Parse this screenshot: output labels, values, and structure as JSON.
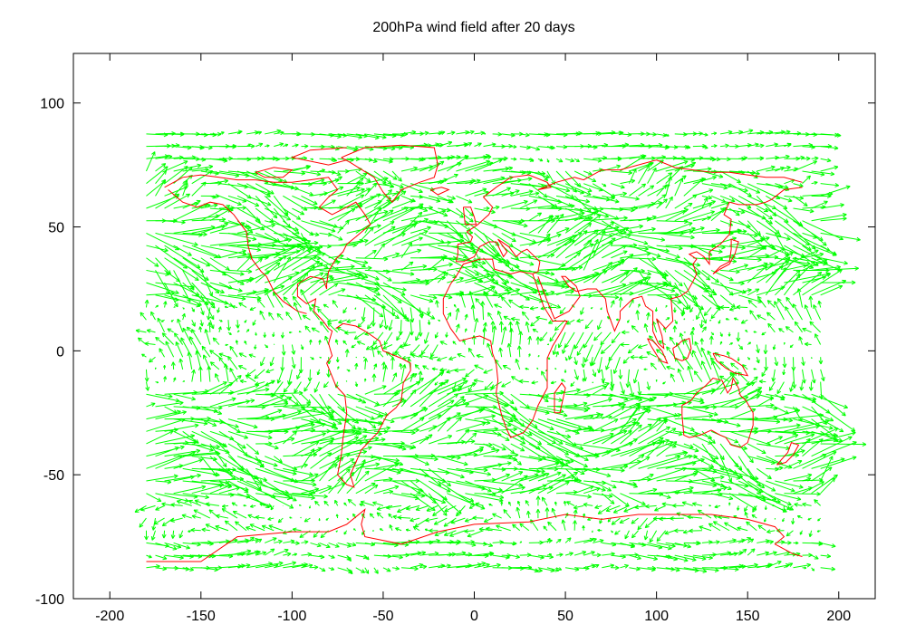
{
  "chart_data": {
    "type": "vector-field",
    "title": "200hPa wind field after 20 days",
    "xlabel": "",
    "ylabel": "",
    "xlim": [
      -220,
      220
    ],
    "ylim": [
      -100,
      120
    ],
    "x_ticks": [
      -200,
      -150,
      -100,
      -50,
      0,
      50,
      100,
      150,
      200
    ],
    "y_ticks": [
      -100,
      -50,
      0,
      50,
      100
    ],
    "x_tick_labels": [
      "-200",
      "-150",
      "-100",
      "-50",
      "0",
      "50",
      "100",
      "150",
      "200"
    ],
    "y_tick_labels": [
      "-100",
      "-50",
      "0",
      "50",
      "100"
    ],
    "grid": false,
    "legend": "none",
    "field_extent": {
      "lon": [
        -180,
        190
      ],
      "lat": [
        -90,
        90
      ]
    },
    "grid_spacing": {
      "lon": 5,
      "lat": 5
    },
    "vector_color": "#00ff00",
    "coastline_color": "#ff0000",
    "wind_bands": [
      {
        "lat_range": [
          75,
          90
        ],
        "u_mean": 16,
        "v_amp": 2
      },
      {
        "lat_range": [
          55,
          75
        ],
        "u_mean": 22,
        "v_amp": 10
      },
      {
        "lat_range": [
          20,
          55
        ],
        "u_mean": 30,
        "v_amp": 14
      },
      {
        "lat_range": [
          -15,
          20
        ],
        "u_mean": -4,
        "v_amp": 10
      },
      {
        "lat_range": [
          -60,
          -15
        ],
        "u_mean": 30,
        "v_amp": 12
      },
      {
        "lat_range": [
          -75,
          -60
        ],
        "u_mean": -8,
        "v_amp": 6
      },
      {
        "lat_range": [
          -90,
          -75
        ],
        "u_mean": 16,
        "v_amp": 3
      }
    ],
    "coastlines": [
      [
        [
          -170,
          66
        ],
        [
          -160,
          70
        ],
        [
          -150,
          71
        ],
        [
          -140,
          70
        ],
        [
          -130,
          69
        ],
        [
          -120,
          69
        ],
        [
          -110,
          68
        ],
        [
          -100,
          68
        ],
        [
          -90,
          69
        ],
        [
          -80,
          70
        ],
        [
          -75,
          65
        ],
        [
          -80,
          62
        ],
        [
          -85,
          58
        ],
        [
          -78,
          55
        ],
        [
          -70,
          58
        ],
        [
          -65,
          60
        ],
        [
          -60,
          55
        ],
        [
          -57,
          51
        ],
        [
          -65,
          46
        ],
        [
          -70,
          43
        ],
        [
          -72,
          40
        ],
        [
          -76,
          37
        ],
        [
          -80,
          32
        ],
        [
          -81,
          27
        ],
        [
          -81,
          25
        ],
        [
          -83,
          29
        ],
        [
          -90,
          30
        ],
        [
          -97,
          27
        ],
        [
          -97,
          22
        ],
        [
          -92,
          19
        ],
        [
          -87,
          21
        ],
        [
          -88,
          16
        ],
        [
          -83,
          12
        ],
        [
          -80,
          9
        ],
        [
          -78,
          8
        ],
        [
          -80,
          3
        ],
        [
          -78,
          -2
        ],
        [
          -81,
          -5
        ],
        [
          -76,
          -14
        ],
        [
          -71,
          -18
        ],
        [
          -70,
          -25
        ],
        [
          -72,
          -35
        ],
        [
          -73,
          -42
        ],
        [
          -75,
          -50
        ],
        [
          -70,
          -54
        ],
        [
          -66,
          -55
        ],
        [
          -68,
          -50
        ],
        [
          -65,
          -45
        ],
        [
          -62,
          -40
        ],
        [
          -57,
          -36
        ],
        [
          -53,
          -33
        ],
        [
          -48,
          -26
        ],
        [
          -43,
          -23
        ],
        [
          -40,
          -20
        ],
        [
          -39,
          -13
        ],
        [
          -35,
          -8
        ],
        [
          -35,
          -5
        ],
        [
          -40,
          -3
        ],
        [
          -50,
          0
        ],
        [
          -52,
          4
        ],
        [
          -60,
          8
        ],
        [
          -65,
          10
        ],
        [
          -72,
          11
        ],
        [
          -76,
          9
        ]
      ],
      [
        [
          -125,
          48
        ],
        [
          -124,
          42
        ],
        [
          -122,
          37
        ],
        [
          -117,
          32
        ],
        [
          -114,
          30
        ],
        [
          -110,
          24
        ],
        [
          -105,
          20
        ],
        [
          -97,
          16
        ],
        [
          -92,
          15
        ]
      ],
      [
        [
          -168,
          65
        ],
        [
          -160,
          60
        ],
        [
          -152,
          58
        ],
        [
          -145,
          60
        ],
        [
          -138,
          59
        ],
        [
          -132,
          55
        ],
        [
          -128,
          51
        ],
        [
          -125,
          48
        ]
      ],
      [
        [
          -73,
          78
        ],
        [
          -60,
          82
        ],
        [
          -40,
          83
        ],
        [
          -22,
          82
        ],
        [
          -20,
          75
        ],
        [
          -22,
          70
        ],
        [
          -30,
          68
        ],
        [
          -40,
          65
        ],
        [
          -45,
          60
        ],
        [
          -50,
          64
        ],
        [
          -55,
          70
        ],
        [
          -68,
          76
        ],
        [
          -73,
          78
        ]
      ],
      [
        [
          -24,
          65
        ],
        [
          -18,
          66
        ],
        [
          -14,
          65
        ],
        [
          -20,
          63
        ],
        [
          -24,
          65
        ]
      ],
      [
        [
          -10,
          36
        ],
        [
          -9,
          39
        ],
        [
          -9,
          43
        ],
        [
          -2,
          44
        ],
        [
          -1,
          46
        ],
        [
          -4,
          48
        ],
        [
          2,
          51
        ],
        [
          5,
          53
        ],
        [
          8,
          55
        ],
        [
          10,
          58
        ],
        [
          5,
          62
        ],
        [
          12,
          66
        ],
        [
          20,
          70
        ],
        [
          30,
          71
        ],
        [
          40,
          68
        ],
        [
          42,
          66
        ],
        [
          35,
          65
        ],
        [
          45,
          68
        ],
        [
          55,
          70
        ],
        [
          60,
          69
        ],
        [
          70,
          73
        ],
        [
          80,
          73
        ],
        [
          100,
          77
        ],
        [
          110,
          74
        ],
        [
          130,
          72
        ],
        [
          140,
          72
        ],
        [
          150,
          71
        ],
        [
          160,
          70
        ],
        [
          170,
          70
        ],
        [
          180,
          68
        ]
      ],
      [
        [
          -6,
          58
        ],
        [
          -5,
          51
        ],
        [
          1,
          51
        ],
        [
          0,
          54
        ],
        [
          -2,
          58
        ],
        [
          -6,
          58
        ]
      ],
      [
        [
          -10,
          36
        ],
        [
          -6,
          36
        ],
        [
          0,
          38
        ],
        [
          3,
          42
        ],
        [
          8,
          44
        ],
        [
          12,
          44
        ],
        [
          16,
          38
        ],
        [
          18,
          40
        ],
        [
          13,
          45
        ],
        [
          19,
          42
        ],
        [
          23,
          38
        ],
        [
          26,
          40
        ],
        [
          29,
          41
        ],
        [
          36,
          36
        ],
        [
          35,
          32
        ],
        [
          32,
          31
        ],
        [
          25,
          32
        ],
        [
          20,
          31
        ],
        [
          11,
          33
        ],
        [
          10,
          37
        ],
        [
          3,
          37
        ],
        [
          -6,
          35
        ],
        [
          -10,
          30
        ],
        [
          -13,
          27
        ],
        [
          -17,
          21
        ],
        [
          -17,
          15
        ],
        [
          -13,
          9
        ],
        [
          -8,
          4
        ],
        [
          -3,
          5
        ],
        [
          3,
          6
        ],
        [
          9,
          4
        ],
        [
          10,
          -1
        ],
        [
          12,
          -5
        ],
        [
          13,
          -12
        ],
        [
          12,
          -17
        ],
        [
          15,
          -26
        ],
        [
          18,
          -32
        ],
        [
          20,
          -35
        ],
        [
          27,
          -33
        ],
        [
          32,
          -28
        ],
        [
          35,
          -22
        ],
        [
          40,
          -15
        ],
        [
          40,
          -10
        ],
        [
          40,
          -3
        ],
        [
          43,
          2
        ],
        [
          48,
          8
        ],
        [
          51,
          12
        ],
        [
          43,
          12
        ],
        [
          38,
          18
        ],
        [
          34,
          27
        ],
        [
          32,
          31
        ]
      ],
      [
        [
          44,
          -25
        ],
        [
          47,
          -25
        ],
        [
          50,
          -15
        ],
        [
          48,
          -13
        ],
        [
          44,
          -17
        ],
        [
          44,
          -25
        ]
      ],
      [
        [
          35,
          30
        ],
        [
          40,
          20
        ],
        [
          44,
          13
        ],
        [
          52,
          16
        ],
        [
          58,
          22
        ],
        [
          56,
          26
        ],
        [
          50,
          30
        ],
        [
          48,
          30
        ],
        [
          52,
          26
        ],
        [
          56,
          24
        ],
        [
          62,
          25
        ],
        [
          67,
          25
        ],
        [
          72,
          21
        ],
        [
          73,
          16
        ],
        [
          77,
          8
        ],
        [
          80,
          13
        ],
        [
          80,
          16
        ],
        [
          87,
          21
        ],
        [
          92,
          22
        ],
        [
          94,
          18
        ],
        [
          98,
          16
        ],
        [
          98,
          8
        ],
        [
          101,
          3
        ],
        [
          104,
          1
        ],
        [
          103,
          6
        ],
        [
          100,
          13
        ],
        [
          105,
          9
        ],
        [
          109,
          12
        ],
        [
          108,
          21
        ],
        [
          113,
          22
        ],
        [
          117,
          24
        ],
        [
          120,
          28
        ],
        [
          122,
          31
        ],
        [
          120,
          35
        ],
        [
          122,
          37
        ],
        [
          118,
          39
        ],
        [
          122,
          40
        ],
        [
          126,
          38
        ],
        [
          129,
          35
        ],
        [
          129,
          40
        ],
        [
          135,
          43
        ],
        [
          140,
          47
        ],
        [
          141,
          53
        ],
        [
          137,
          55
        ],
        [
          140,
          60
        ],
        [
          145,
          59
        ],
        [
          155,
          59
        ],
        [
          160,
          60
        ],
        [
          163,
          61
        ],
        [
          170,
          65
        ],
        [
          180,
          66
        ]
      ],
      [
        [
          131,
          31
        ],
        [
          135,
          34
        ],
        [
          140,
          36
        ],
        [
          141,
          41
        ],
        [
          141,
          45
        ],
        [
          145,
          44
        ],
        [
          143,
          39
        ],
        [
          140,
          35
        ],
        [
          135,
          33
        ],
        [
          131,
          31
        ]
      ],
      [
        [
          114,
          -22
        ],
        [
          114,
          -26
        ],
        [
          115,
          -34
        ],
        [
          118,
          -35
        ],
        [
          124,
          -34
        ],
        [
          130,
          -32
        ],
        [
          135,
          -34
        ],
        [
          138,
          -35
        ],
        [
          141,
          -38
        ],
        [
          146,
          -39
        ],
        [
          150,
          -37
        ],
        [
          153,
          -30
        ],
        [
          153,
          -25
        ],
        [
          149,
          -20
        ],
        [
          146,
          -18
        ],
        [
          145,
          -15
        ],
        [
          142,
          -11
        ],
        [
          141,
          -15
        ],
        [
          139,
          -17
        ],
        [
          136,
          -12
        ],
        [
          131,
          -11
        ],
        [
          127,
          -14
        ],
        [
          122,
          -17
        ],
        [
          119,
          -20
        ],
        [
          114,
          -22
        ]
      ],
      [
        [
          166,
          -46
        ],
        [
          172,
          -41
        ],
        [
          174,
          -37
        ],
        [
          178,
          -38
        ],
        [
          175,
          -42
        ],
        [
          171,
          -45
        ],
        [
          166,
          -46
        ]
      ],
      [
        [
          95,
          5
        ],
        [
          98,
          4
        ],
        [
          103,
          0
        ],
        [
          106,
          -5
        ],
        [
          102,
          -4
        ],
        [
          97,
          2
        ],
        [
          95,
          5
        ]
      ],
      [
        [
          131,
          -1
        ],
        [
          137,
          -2
        ],
        [
          141,
          -3
        ],
        [
          147,
          -6
        ],
        [
          150,
          -10
        ],
        [
          143,
          -9
        ],
        [
          138,
          -7
        ],
        [
          133,
          -4
        ],
        [
          131,
          -1
        ]
      ],
      [
        [
          109,
          1
        ],
        [
          111,
          2
        ],
        [
          114,
          4
        ],
        [
          118,
          5
        ],
        [
          119,
          1
        ],
        [
          117,
          -3
        ],
        [
          114,
          -4
        ],
        [
          110,
          -3
        ],
        [
          109,
          1
        ]
      ],
      [
        [
          -180,
          -85
        ],
        [
          -150,
          -85
        ],
        [
          -130,
          -75
        ],
        [
          -100,
          -73
        ],
        [
          -80,
          -73
        ],
        [
          -70,
          -70
        ],
        [
          -60,
          -64
        ],
        [
          -62,
          -70
        ],
        [
          -60,
          -75
        ],
        [
          -40,
          -78
        ],
        [
          -20,
          -73
        ],
        [
          0,
          -70
        ],
        [
          30,
          -69
        ],
        [
          50,
          -66
        ],
        [
          70,
          -68
        ],
        [
          90,
          -66
        ],
        [
          110,
          -66
        ],
        [
          130,
          -66
        ],
        [
          150,
          -68
        ],
        [
          165,
          -71
        ],
        [
          170,
          -75
        ],
        [
          165,
          -78
        ],
        [
          175,
          -82
        ],
        [
          180,
          -83
        ]
      ],
      [
        [
          -70,
          82
        ],
        [
          -90,
          81
        ],
        [
          -100,
          78
        ],
        [
          -80,
          75
        ],
        [
          -70,
          77
        ]
      ],
      [
        [
          -120,
          72
        ],
        [
          -110,
          74
        ],
        [
          -100,
          73
        ],
        [
          -105,
          70
        ],
        [
          -115,
          70
        ],
        [
          -120,
          72
        ]
      ]
    ]
  }
}
